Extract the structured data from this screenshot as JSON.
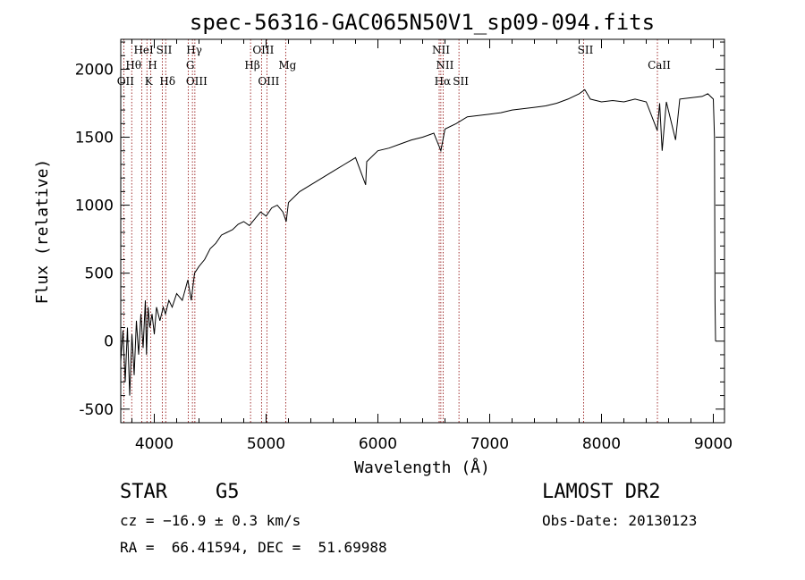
{
  "chart_data": {
    "type": "line",
    "title": "spec-56316-GAC065N50V1_sp09-094.fits",
    "xlabel": "Wavelength (Å)",
    "ylabel": "Flux (relative)",
    "xlim": [
      3700,
      9100
    ],
    "ylim": [
      -600,
      2220
    ],
    "xticks": [
      4000,
      5000,
      6000,
      7000,
      8000,
      9000
    ],
    "yticks": [
      -500,
      0,
      500,
      1000,
      1500,
      2000
    ],
    "line_color": "#000000",
    "marker_color": "#8b0000",
    "series": [
      {
        "points": [
          [
            3700,
            -150
          ],
          [
            3720,
            80
          ],
          [
            3740,
            -300
          ],
          [
            3760,
            100
          ],
          [
            3780,
            -400
          ],
          [
            3800,
            50
          ],
          [
            3820,
            -250
          ],
          [
            3840,
            150
          ],
          [
            3860,
            -100
          ],
          [
            3880,
            200
          ],
          [
            3900,
            -50
          ],
          [
            3920,
            300
          ],
          [
            3930,
            -100
          ],
          [
            3945,
            250
          ],
          [
            3960,
            100
          ],
          [
            3980,
            200
          ],
          [
            4000,
            50
          ],
          [
            4020,
            250
          ],
          [
            4050,
            150
          ],
          [
            4080,
            250
          ],
          [
            4100,
            200
          ],
          [
            4130,
            300
          ],
          [
            4160,
            250
          ],
          [
            4200,
            350
          ],
          [
            4250,
            300
          ],
          [
            4300,
            450
          ],
          [
            4330,
            300
          ],
          [
            4360,
            500
          ],
          [
            4400,
            550
          ],
          [
            4450,
            600
          ],
          [
            4500,
            680
          ],
          [
            4550,
            720
          ],
          [
            4600,
            780
          ],
          [
            4650,
            800
          ],
          [
            4700,
            820
          ],
          [
            4750,
            860
          ],
          [
            4800,
            880
          ],
          [
            4850,
            850
          ],
          [
            4900,
            900
          ],
          [
            4950,
            950
          ],
          [
            5000,
            920
          ],
          [
            5050,
            980
          ],
          [
            5100,
            1000
          ],
          [
            5150,
            950
          ],
          [
            5180,
            880
          ],
          [
            5200,
            1020
          ],
          [
            5300,
            1100
          ],
          [
            5400,
            1150
          ],
          [
            5500,
            1200
          ],
          [
            5600,
            1250
          ],
          [
            5700,
            1300
          ],
          [
            5800,
            1350
          ],
          [
            5890,
            1150
          ],
          [
            5900,
            1320
          ],
          [
            6000,
            1400
          ],
          [
            6100,
            1420
          ],
          [
            6200,
            1450
          ],
          [
            6300,
            1480
          ],
          [
            6400,
            1500
          ],
          [
            6500,
            1530
          ],
          [
            6563,
            1400
          ],
          [
            6600,
            1560
          ],
          [
            6700,
            1600
          ],
          [
            6800,
            1650
          ],
          [
            6900,
            1660
          ],
          [
            7000,
            1670
          ],
          [
            7100,
            1680
          ],
          [
            7200,
            1700
          ],
          [
            7300,
            1710
          ],
          [
            7400,
            1720
          ],
          [
            7500,
            1730
          ],
          [
            7600,
            1750
          ],
          [
            7700,
            1780
          ],
          [
            7800,
            1820
          ],
          [
            7850,
            1850
          ],
          [
            7900,
            1780
          ],
          [
            8000,
            1760
          ],
          [
            8100,
            1770
          ],
          [
            8200,
            1760
          ],
          [
            8300,
            1780
          ],
          [
            8400,
            1760
          ],
          [
            8498,
            1550
          ],
          [
            8520,
            1750
          ],
          [
            8542,
            1400
          ],
          [
            8580,
            1760
          ],
          [
            8662,
            1480
          ],
          [
            8700,
            1780
          ],
          [
            8800,
            1790
          ],
          [
            8900,
            1800
          ],
          [
            8950,
            1820
          ],
          [
            9000,
            1780
          ],
          [
            9010,
            1500
          ],
          [
            9015,
            300
          ],
          [
            9020,
            0
          ]
        ]
      }
    ],
    "lines": [
      {
        "label": "OII",
        "wl": 3727,
        "row": 3
      },
      {
        "label": "Hθ",
        "wl": 3798,
        "row": 2
      },
      {
        "label": "HeI",
        "wl": 3889,
        "row": 1
      },
      {
        "label": "K",
        "wl": 3934,
        "row": 3
      },
      {
        "label": "H",
        "wl": 3969,
        "row": 2
      },
      {
        "label": "SII",
        "wl": 4072,
        "row": 1
      },
      {
        "label": "Hδ",
        "wl": 4102,
        "row": 3
      },
      {
        "label": "G",
        "wl": 4305,
        "row": 2
      },
      {
        "label": "Hγ",
        "wl": 4341,
        "row": 1
      },
      {
        "label": "OIII",
        "wl": 4363,
        "row": 3
      },
      {
        "label": "Hβ",
        "wl": 4861,
        "row": 2
      },
      {
        "label": "OIII",
        "wl": 4959,
        "row": 1
      },
      {
        "label": "OIII",
        "wl": 5007,
        "row": 3
      },
      {
        "label": "Mg",
        "wl": 5175,
        "row": 2
      },
      {
        "label": "NII",
        "wl": 6548,
        "row": 1
      },
      {
        "label": "Hα",
        "wl": 6563,
        "row": 3
      },
      {
        "label": "NII",
        "wl": 6583,
        "row": 2
      },
      {
        "label": "SII",
        "wl": 6725,
        "row": 3
      },
      {
        "label": "SII",
        "wl": 7840,
        "row": 1
      },
      {
        "label": "CaII",
        "wl": 8500,
        "row": 2
      }
    ]
  },
  "info": {
    "object_class": "STAR",
    "subclass": "G5",
    "survey": "LAMOST DR2",
    "redshift": "cz = −16.9 ± 0.3 km/s",
    "obs_date": "Obs-Date: 20130123",
    "coords": "RA =  66.41594, DEC =  51.69988"
  }
}
